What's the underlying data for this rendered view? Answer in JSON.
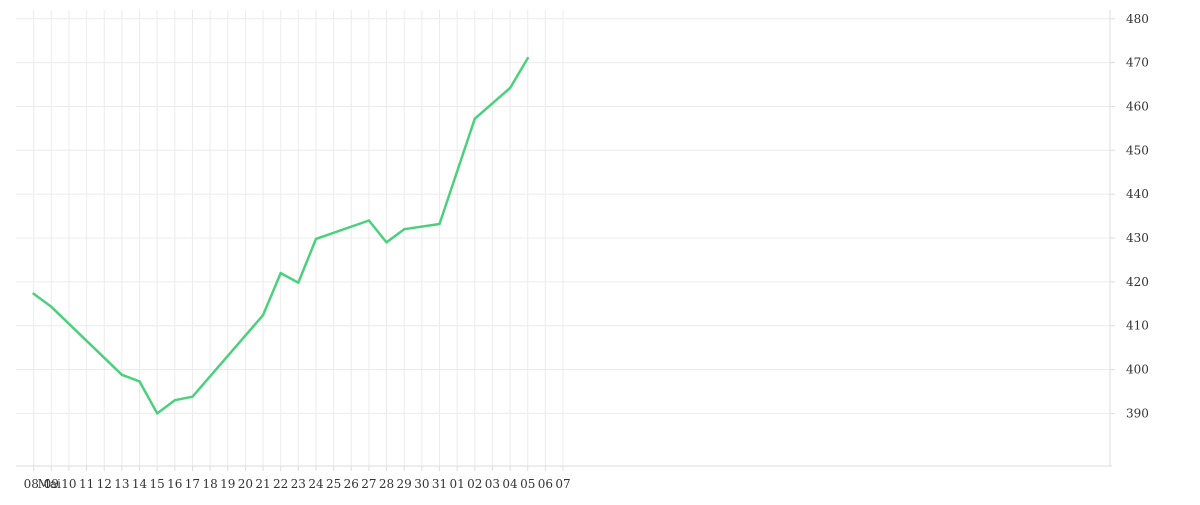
{
  "chart_data": {
    "type": "line",
    "title": "",
    "xlabel": "",
    "ylabel": "",
    "x_ticks": [
      "08",
      "Mai",
      "09",
      "10",
      "11",
      "12",
      "13",
      "14",
      "15",
      "16",
      "17",
      "18",
      "19",
      "20",
      "21",
      "22",
      "23",
      "24",
      "25",
      "26",
      "27",
      "28",
      "29",
      "30",
      "31",
      "01",
      "02",
      "03",
      "04",
      "05",
      "06",
      "07"
    ],
    "y_ticks": [
      "390",
      "400",
      "410",
      "420",
      "430",
      "440",
      "450",
      "460",
      "470",
      "480"
    ],
    "ylim": [
      378,
      482
    ],
    "xlim": [
      "2023-04-07",
      "2023-06-08"
    ],
    "grid": true,
    "legend": "none",
    "colors": {
      "line": "#4cd07d",
      "grid": "#ececec",
      "axis": "#dddddd",
      "text": "#333333"
    },
    "series": [
      {
        "x": [
          "2023-04-08",
          "2023-04-09",
          "2023-04-13",
          "2023-04-14",
          "2023-04-15",
          "2023-04-16",
          "2023-04-17",
          "2023-04-21",
          "2023-04-22",
          "2023-04-23",
          "2023-04-24",
          "2023-04-27",
          "2023-04-28",
          "2023-04-29",
          "2023-05-01",
          "2023-05-03",
          "2023-05-05",
          "2023-05-06"
        ],
        "values": [
          417.3,
          414.3,
          398.8,
          397.3,
          390.0,
          393.0,
          393.8,
          412.4,
          422.0,
          419.8,
          429.8,
          434.0,
          429.0,
          432.0,
          433.2,
          457.2,
          464.2,
          471.0
        ]
      }
    ]
  }
}
